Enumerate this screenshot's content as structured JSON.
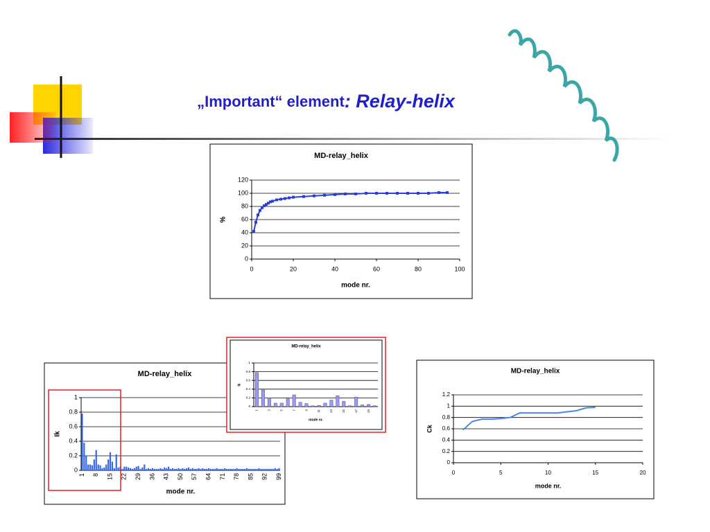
{
  "title": {
    "lead": "„Important“ element",
    "emphasis": ": Relay-helix"
  },
  "chart_data": [
    {
      "type": "line",
      "title": "MD-relay_helix",
      "x_label": "mode nr.",
      "y_label": "%",
      "color": "#2b3fd6",
      "marker": "square",
      "x": [
        1,
        2,
        3,
        4,
        5,
        6,
        7,
        8,
        9,
        10,
        12,
        14,
        16,
        18,
        20,
        25,
        30,
        35,
        40,
        45,
        50,
        55,
        60,
        65,
        70,
        75,
        80,
        85,
        90,
        94
      ],
      "values": [
        42,
        56,
        67,
        74,
        78,
        81,
        83,
        85,
        87,
        88,
        90,
        91,
        92,
        93,
        94,
        95,
        96,
        97,
        98,
        99,
        99,
        100,
        100,
        100,
        100,
        100,
        100,
        100,
        101,
        101
      ],
      "xlim": [
        0,
        100
      ],
      "xticks": [
        0,
        20,
        40,
        60,
        80,
        100
      ],
      "ylim": [
        0,
        120
      ],
      "yticks": [
        0,
        20,
        40,
        60,
        80,
        100,
        120
      ],
      "grid": true
    },
    {
      "type": "bar",
      "title": "MD-relay_helix",
      "x_label": "mode nr.",
      "y_label": "Ik",
      "color": "#3366ee",
      "categories": [
        "1",
        null,
        null,
        null,
        null,
        null,
        null,
        "8",
        null,
        null,
        null,
        null,
        null,
        null,
        "15",
        null,
        null,
        null,
        null,
        null,
        null,
        "22",
        null,
        null,
        null,
        null,
        null,
        null,
        "29",
        null,
        null,
        null,
        null,
        null,
        null,
        "36",
        null,
        null,
        null,
        null,
        null,
        null,
        "43",
        null,
        null,
        null,
        null,
        null,
        null,
        "50",
        null,
        null,
        null,
        null,
        null,
        null,
        "57",
        null,
        null,
        null,
        null,
        null,
        null,
        "64",
        null,
        null,
        null,
        null,
        null,
        null,
        "71",
        null,
        null,
        null,
        null,
        null,
        null,
        "78",
        null,
        null,
        null,
        null,
        null,
        null,
        "85",
        null,
        null,
        null,
        null,
        null,
        null,
        "92",
        null,
        null,
        null,
        null,
        null,
        null,
        "99"
      ],
      "values": [
        0.78,
        0.38,
        0.2,
        0.08,
        0.08,
        0.07,
        0.15,
        0.28,
        0.08,
        0.07,
        0.03,
        0.04,
        0.08,
        0.15,
        0.25,
        0.12,
        0.03,
        0.22,
        0.04,
        0.05,
        0.02,
        0.05,
        0.05,
        0.04,
        0.03,
        0.02,
        0.03,
        0.05,
        0.06,
        0.02,
        0.04,
        0.08,
        0.02,
        0.03,
        0.02,
        0.03,
        0.02,
        0.02,
        0.02,
        0.03,
        0.02,
        0.04,
        0.03,
        0.05,
        0.02,
        0.03,
        0.02,
        0.02,
        0.03,
        0.02,
        0.03,
        0.02,
        0.03,
        0.04,
        0.02,
        0.03,
        0.02,
        0.02,
        0.03,
        0.02,
        0.03,
        0.02,
        0.02,
        0.03,
        0.02,
        0.02,
        0.02,
        0.03,
        0.02,
        0.02,
        0.02,
        0.03,
        0.02,
        0.02,
        0.02,
        0.02,
        0.02,
        0.03,
        0.02,
        0.02,
        0.02,
        0.02,
        0.03,
        0.02,
        0.02,
        0.02,
        0.02,
        0.02,
        0.03,
        0.02,
        0.02,
        0.02,
        0.02,
        0.02,
        0.02,
        0.02,
        0.03,
        0.02,
        0.03
      ],
      "ylim": [
        0,
        1
      ],
      "yticks": [
        0,
        0.2,
        0.4,
        0.6,
        0.8,
        1
      ],
      "grid": true
    },
    {
      "type": "bar",
      "title": "MD-relay_helix",
      "x_label": "mode nr.",
      "y_label": "Ik",
      "color": "#9999ff",
      "categories": [
        "1",
        null,
        "3",
        null,
        "5",
        null,
        "7",
        null,
        "9",
        null,
        "11",
        null,
        "13",
        null,
        "15",
        null,
        "17",
        null,
        "19",
        null
      ],
      "values": [
        0.78,
        0.38,
        0.2,
        0.08,
        0.08,
        0.18,
        0.27,
        0.1,
        0.07,
        0.02,
        0.03,
        0.08,
        0.15,
        0.25,
        0.12,
        0.02,
        0.22,
        0.04,
        0.05,
        0.02
      ],
      "ylim": [
        0,
        1
      ],
      "yticks": [
        0,
        0.2,
        0.4,
        0.6,
        0.8,
        1
      ],
      "grid": true
    },
    {
      "type": "line",
      "title": "MD-relay_helix",
      "x_label": "mode nr.",
      "y_label": "Ck",
      "color": "#4a86e8",
      "x": [
        1,
        2,
        3,
        4,
        5,
        6,
        7,
        8,
        9,
        10,
        11,
        12,
        13,
        14,
        15
      ],
      "values": [
        0.58,
        0.73,
        0.77,
        0.77,
        0.78,
        0.8,
        0.88,
        0.88,
        0.88,
        0.88,
        0.88,
        0.9,
        0.92,
        0.97,
        0.98
      ],
      "xlim": [
        0,
        20
      ],
      "xticks": [
        0,
        5,
        10,
        15,
        20
      ],
      "ylim": [
        0,
        1.2
      ],
      "yticks": [
        0,
        0.2,
        0.4,
        0.6,
        0.8,
        1,
        1.2
      ],
      "grid": true
    }
  ]
}
